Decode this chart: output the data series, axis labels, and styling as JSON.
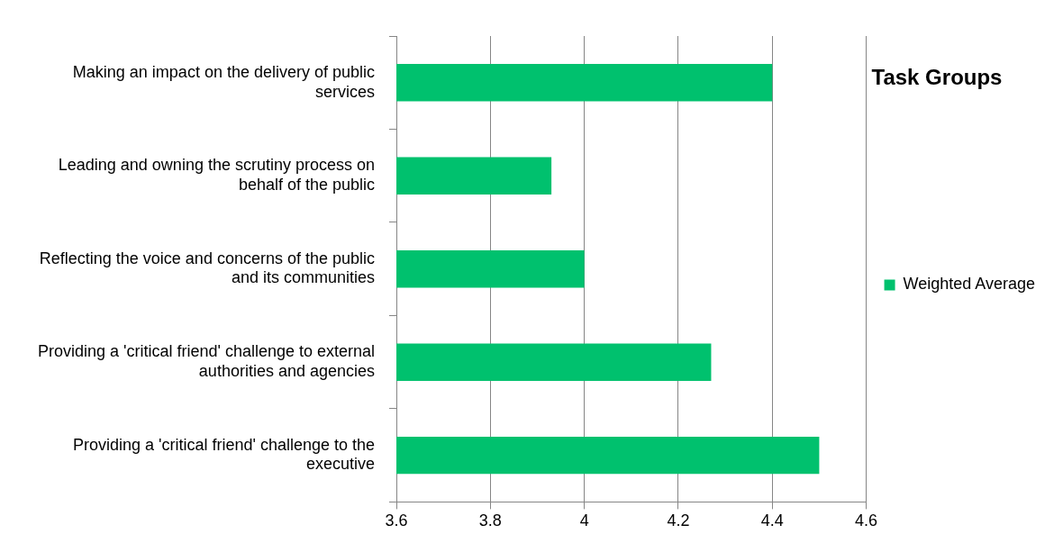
{
  "chart_data": {
    "type": "bar",
    "orientation": "horizontal",
    "title": "Task Groups",
    "categories": [
      "Making an impact on the delivery of public services",
      "Leading and owning the scrutiny process on behalf of the public",
      "Reflecting the voice and concerns of the public and its communities",
      "Providing a 'critical friend' challenge to external authorities and agencies",
      "Providing a 'critical friend' challenge to the executive"
    ],
    "series": [
      {
        "name": "Weighted Average",
        "color": "#00c16e",
        "values": [
          4.4,
          3.93,
          4.0,
          4.27,
          4.5
        ]
      }
    ],
    "xlim": [
      3.6,
      4.6
    ],
    "xticks": [
      3.6,
      3.8,
      4,
      4.2,
      4.4,
      4.6
    ],
    "grid": "x",
    "legend": "right"
  }
}
